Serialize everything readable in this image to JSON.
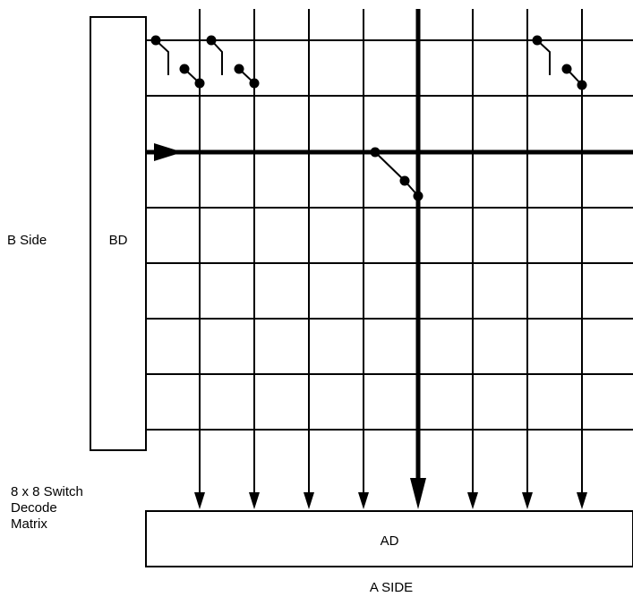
{
  "labels": {
    "b_side": "B Side",
    "bd_block": "BD",
    "matrix_line_1": "8 x 8 Switch",
    "matrix_line_2": "Decode",
    "matrix_line_3": "Matrix",
    "ad_block": "AD",
    "a_side": "A SIDE"
  },
  "matrix": {
    "rows": 8,
    "columns": 8,
    "highlighted_row": 3,
    "highlighted_column": 5
  },
  "switches": [
    {
      "row": 1,
      "column": 1,
      "state": "open"
    },
    {
      "row": 1,
      "column": 2,
      "state": "open"
    },
    {
      "row": 1,
      "column": 7,
      "state": "open"
    },
    {
      "row": 3,
      "column": 5,
      "state": "closed"
    }
  ],
  "colors": {
    "line": "#000000",
    "background": "#ffffff"
  }
}
